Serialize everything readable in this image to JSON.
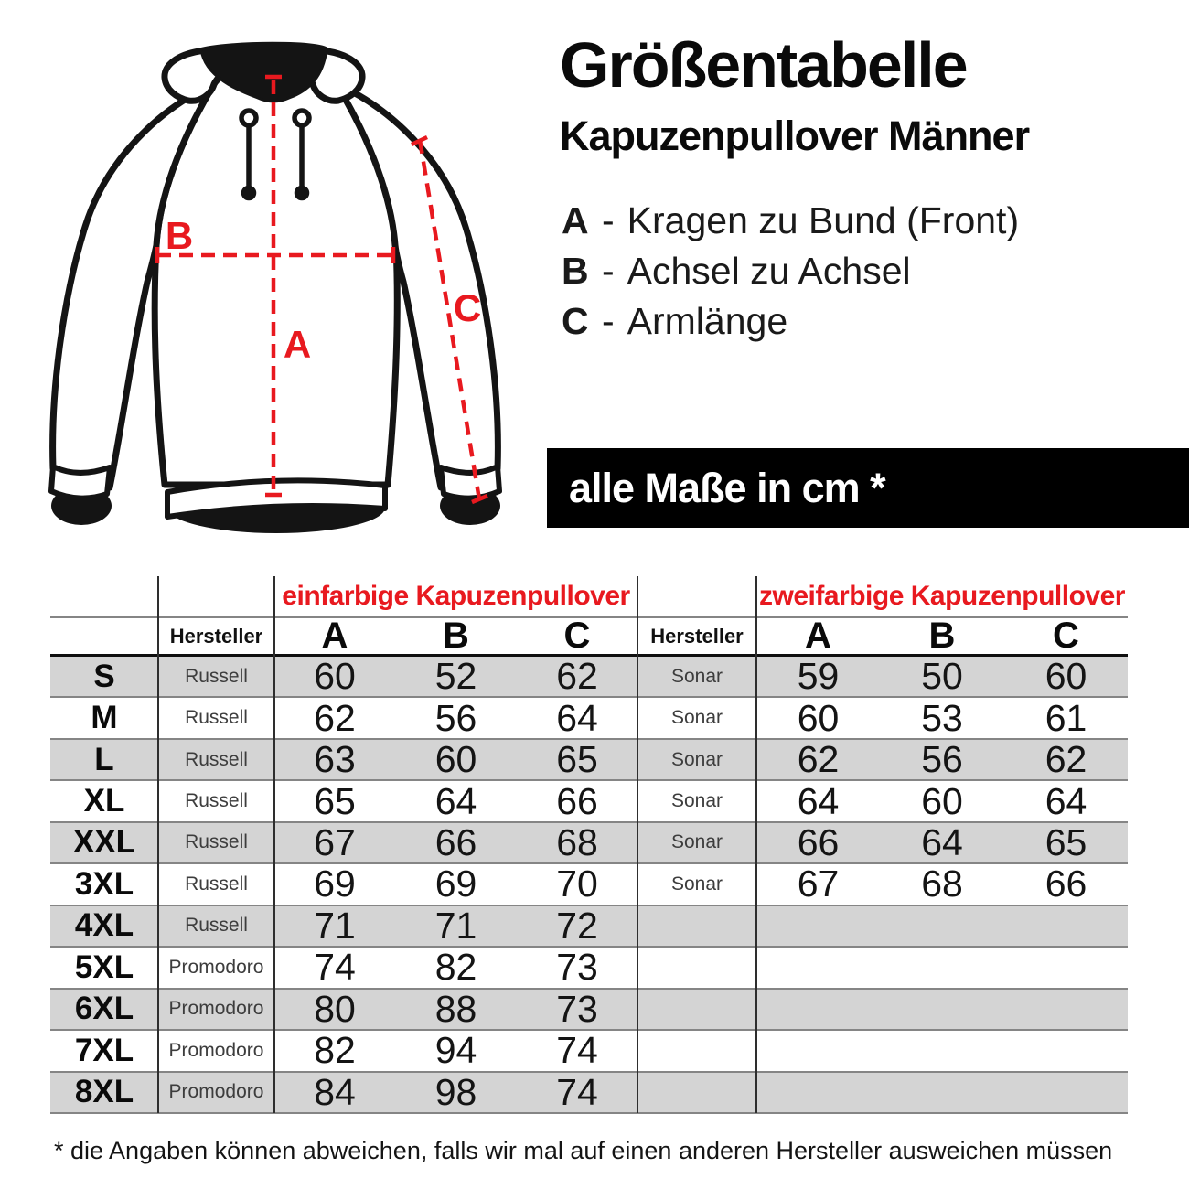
{
  "header": {
    "title": "Größentabelle",
    "subtitle": "Kapuzenpullover Männer"
  },
  "legend": {
    "dash": "-",
    "items": [
      {
        "key": "A",
        "label": "Kragen zu Bund (Front)"
      },
      {
        "key": "B",
        "label": "Achsel zu Achsel"
      },
      {
        "key": "C",
        "label": "Armlänge"
      }
    ]
  },
  "banner": {
    "text": "alle Maße in cm *"
  },
  "diagram": {
    "label_a": "A",
    "label_b": "B",
    "label_c": "C"
  },
  "table": {
    "group1": "einfarbige Kapuzenpullover",
    "group2": "zweifarbige Kapuzenpullover",
    "maker_header": "Hersteller",
    "col_a": "A",
    "col_b": "B",
    "col_c": "C",
    "rows": [
      {
        "size": "S",
        "maker1": "Russell",
        "a1": "60",
        "b1": "52",
        "c1": "62",
        "maker2": "Sonar",
        "a2": "59",
        "b2": "50",
        "c2": "60"
      },
      {
        "size": "M",
        "maker1": "Russell",
        "a1": "62",
        "b1": "56",
        "c1": "64",
        "maker2": "Sonar",
        "a2": "60",
        "b2": "53",
        "c2": "61"
      },
      {
        "size": "L",
        "maker1": "Russell",
        "a1": "63",
        "b1": "60",
        "c1": "65",
        "maker2": "Sonar",
        "a2": "62",
        "b2": "56",
        "c2": "62"
      },
      {
        "size": "XL",
        "maker1": "Russell",
        "a1": "65",
        "b1": "64",
        "c1": "66",
        "maker2": "Sonar",
        "a2": "64",
        "b2": "60",
        "c2": "64"
      },
      {
        "size": "XXL",
        "maker1": "Russell",
        "a1": "67",
        "b1": "66",
        "c1": "68",
        "maker2": "Sonar",
        "a2": "66",
        "b2": "64",
        "c2": "65"
      },
      {
        "size": "3XL",
        "maker1": "Russell",
        "a1": "69",
        "b1": "69",
        "c1": "70",
        "maker2": "Sonar",
        "a2": "67",
        "b2": "68",
        "c2": "66"
      },
      {
        "size": "4XL",
        "maker1": "Russell",
        "a1": "71",
        "b1": "71",
        "c1": "72",
        "maker2": "",
        "a2": "",
        "b2": "",
        "c2": ""
      },
      {
        "size": "5XL",
        "maker1": "Promodoro",
        "a1": "74",
        "b1": "82",
        "c1": "73",
        "maker2": "",
        "a2": "",
        "b2": "",
        "c2": ""
      },
      {
        "size": "6XL",
        "maker1": "Promodoro",
        "a1": "80",
        "b1": "88",
        "c1": "73",
        "maker2": "",
        "a2": "",
        "b2": "",
        "c2": ""
      },
      {
        "size": "7XL",
        "maker1": "Promodoro",
        "a1": "82",
        "b1": "94",
        "c1": "74",
        "maker2": "",
        "a2": "",
        "b2": "",
        "c2": ""
      },
      {
        "size": "8XL",
        "maker1": "Promodoro",
        "a1": "84",
        "b1": "98",
        "c1": "74",
        "maker2": "",
        "a2": "",
        "b2": "",
        "c2": ""
      }
    ]
  },
  "footnote": "* die Angaben können abweichen, falls wir mal auf einen anderen Hersteller ausweichen müssen",
  "colors": {
    "accent_red": "#e8191f",
    "row_gray": "#d4d4d4",
    "banner_bg": "#000000",
    "line_gray": "#858585"
  }
}
